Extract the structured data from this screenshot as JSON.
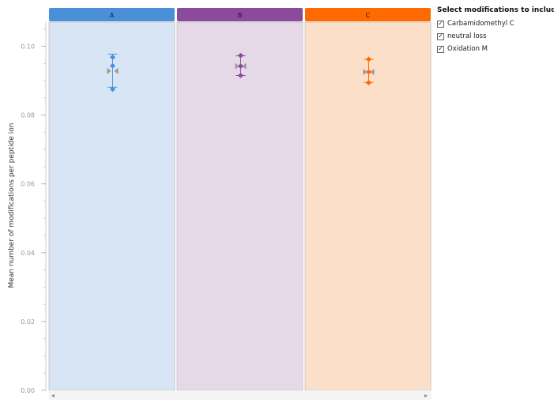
{
  "chart_data": {
    "type": "scatter",
    "title": "",
    "xlabel": "",
    "ylabel": "Mean number of modifications per peptide ion",
    "ylim": [
      0.0,
      0.107
    ],
    "yticks": [
      0.0,
      0.02,
      0.04,
      0.06,
      0.08,
      0.1
    ],
    "ytick_labels": [
      "0.00",
      "0.02",
      "0.04",
      "0.06",
      "0.08",
      "0.10"
    ],
    "grid": false,
    "panels": [
      {
        "label": "A",
        "header_color": "#4a90d9",
        "background_color": "#d8e5f4",
        "points": [
          0.0968,
          0.0943,
          0.0875
        ],
        "mean": 0.0928,
        "error_low": 0.0881,
        "error_high": 0.0977
      },
      {
        "label": "B",
        "header_color": "#8c4a9c",
        "background_color": "#e5d9e7",
        "points": [
          0.0973,
          0.0942,
          0.0915
        ],
        "mean": 0.0942,
        "error_low": 0.0915,
        "error_high": 0.0972
      },
      {
        "label": "C",
        "header_color": "#ff6a00",
        "background_color": "#fcdfc9",
        "points": [
          0.0962,
          0.0925,
          0.0894
        ],
        "mean": 0.0925,
        "error_low": 0.0895,
        "error_high": 0.0962
      }
    ]
  },
  "modifications": {
    "title": "Select modifications to include",
    "items": [
      {
        "label": "Carbamidomethyl C",
        "checked": true
      },
      {
        "label": "neutral loss",
        "checked": true
      },
      {
        "label": "Oxidation M",
        "checked": true
      }
    ]
  },
  "scrollbar": {
    "left_arrow": "◂",
    "right_arrow": "▸"
  }
}
